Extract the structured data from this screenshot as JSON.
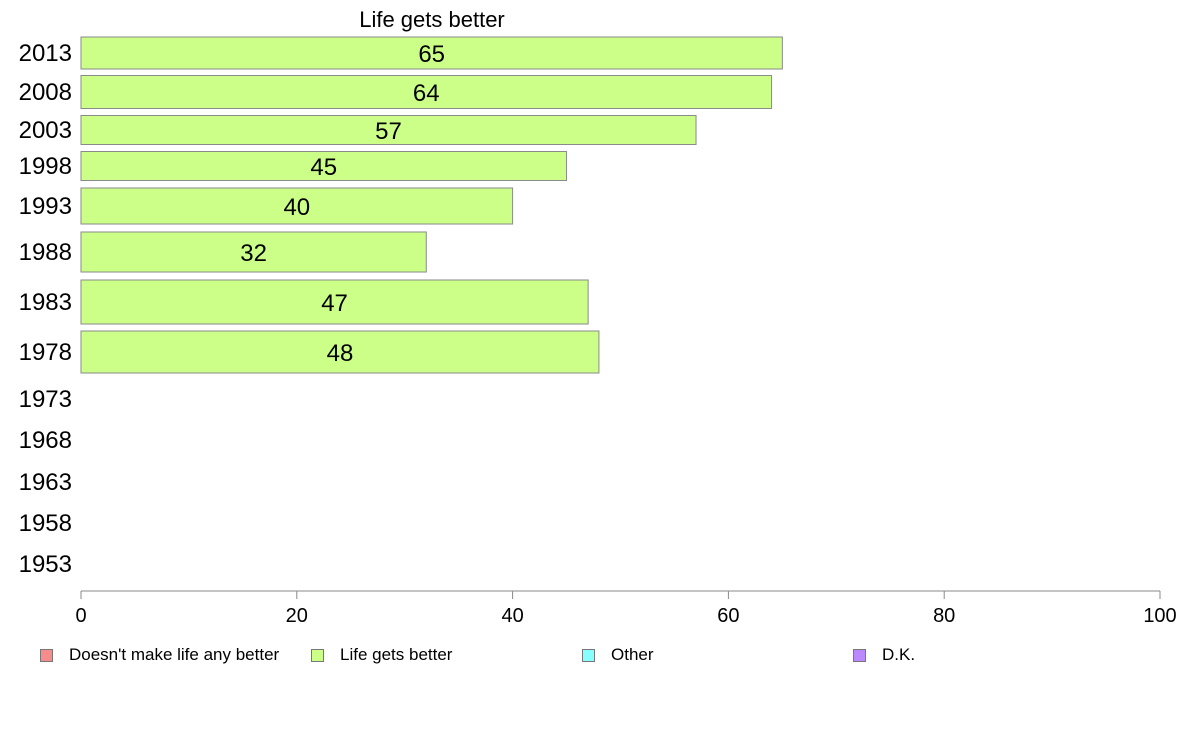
{
  "chart_data": {
    "type": "bar",
    "orientation": "horizontal",
    "title": "Life gets better",
    "categories": [
      "2013",
      "2008",
      "2003",
      "1998",
      "1993",
      "1988",
      "1983",
      "1978",
      "1973",
      "1968",
      "1963",
      "1958",
      "1953"
    ],
    "series": [
      {
        "name": "Life gets better",
        "color": "#ccff88",
        "values": [
          65,
          64,
          57,
          45,
          40,
          32,
          47,
          48,
          null,
          null,
          null,
          null,
          null
        ]
      }
    ],
    "xlim": [
      0,
      100
    ],
    "xticks": [
      "0",
      "20",
      "40",
      "60",
      "80",
      "100"
    ],
    "grid": false,
    "legend_position": "bottom",
    "legend": [
      {
        "label": "Doesn't make life any better",
        "color": "#f78c8c"
      },
      {
        "label": "Life gets better",
        "color": "#ccff88"
      },
      {
        "label": "Other",
        "color": "#88ffff"
      },
      {
        "label": "D.K.",
        "color": "#bb88ff"
      }
    ]
  }
}
